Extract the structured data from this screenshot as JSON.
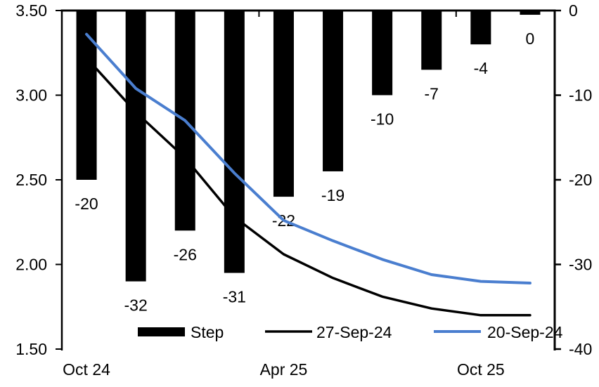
{
  "chart_data": {
    "type": "combo",
    "title": "",
    "n_categories": 10,
    "bar_series": {
      "name": "Step",
      "axis": "right",
      "color": "#000000",
      "values": [
        -20,
        -32,
        -26,
        -31,
        -22,
        -19,
        -10,
        -7,
        -4,
        0
      ],
      "data_labels": [
        "-20",
        "-32",
        "-26",
        "-31",
        "-22",
        "-19",
        "-10",
        "-7",
        "-4",
        "0"
      ]
    },
    "line_series": [
      {
        "name": "27-Sep-24",
        "axis": "left",
        "color": "#000000",
        "stroke_width": 3.5,
        "values": [
          3.22,
          2.9,
          2.63,
          2.28,
          2.06,
          1.92,
          1.81,
          1.74,
          1.7,
          1.7
        ]
      },
      {
        "name": "20-Sep-24",
        "axis": "left",
        "color": "#4a7ecf",
        "stroke_width": 4,
        "values": [
          3.36,
          3.04,
          2.85,
          2.54,
          2.26,
          2.14,
          2.03,
          1.94,
          1.9,
          1.89
        ]
      }
    ],
    "left_axis": {
      "min": 1.5,
      "max": 3.5,
      "ticks": [
        {
          "label": "3.50",
          "value": 3.5
        },
        {
          "label": "3.00",
          "value": 3.0
        },
        {
          "label": "2.50",
          "value": 2.5
        },
        {
          "label": "2.00",
          "value": 2.0
        },
        {
          "label": "1.50",
          "value": 1.5
        }
      ]
    },
    "right_axis": {
      "min": -40,
      "max": 0,
      "ticks": [
        {
          "label": "0",
          "value": 0
        },
        {
          "label": "-10",
          "value": -10
        },
        {
          "label": "-20",
          "value": -20
        },
        {
          "label": "-30",
          "value": -30
        },
        {
          "label": "-40",
          "value": -40
        }
      ]
    },
    "x_axis": {
      "tick_labels": [
        {
          "label": "Oct 24",
          "category_index": 0
        },
        {
          "label": "Apr 25",
          "category_index": 4
        },
        {
          "label": "Oct 25",
          "category_index": 8
        }
      ]
    },
    "legend": [
      {
        "label": "Step",
        "type": "bar",
        "color": "#000000"
      },
      {
        "label": "27-Sep-24",
        "type": "line",
        "color": "#000000"
      },
      {
        "label": "20-Sep-24",
        "type": "line",
        "color": "#4a7ecf"
      }
    ],
    "layout_hints": {
      "grid": "off",
      "legend_position": "bottom-inside",
      "bars_hang_from_top": true
    }
  }
}
